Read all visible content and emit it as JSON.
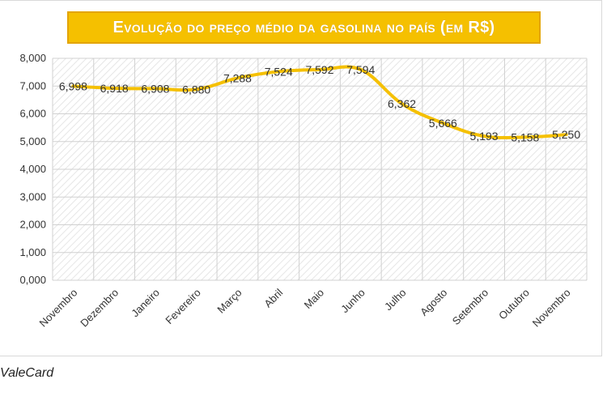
{
  "chart_data": {
    "type": "line",
    "title": "Evolução do preço médio da gasolina no país (em R$)",
    "categories": [
      "Novembro",
      "Dezembro",
      "Janeiro",
      "Fevereiro",
      "Março",
      "Abril",
      "Maio",
      "Junho",
      "Julho",
      "Agosto",
      "Setembro",
      "Outubro",
      "Novembro"
    ],
    "values": [
      6.998,
      6.918,
      6.908,
      6.88,
      7.288,
      7.524,
      7.592,
      7.594,
      6.362,
      5.666,
      5.193,
      5.158,
      5.25
    ],
    "value_labels": [
      "6,998",
      "6,918",
      "6,908",
      "6,880",
      "7,288",
      "7,524",
      "7,592",
      "7,594",
      "6,362",
      "5,666",
      "5,193",
      "5,158",
      "5,250"
    ],
    "y_ticks": [
      0,
      1,
      2,
      3,
      4,
      5,
      6,
      7,
      8
    ],
    "y_tick_labels": [
      "0,000",
      "1,000",
      "2,000",
      "3,000",
      "4,000",
      "5,000",
      "6,000",
      "7,000",
      "8,000"
    ],
    "ylim": [
      0,
      8
    ],
    "xlabel": "",
    "ylabel": "",
    "grid": true,
    "legend": "none",
    "line_color": "#f5c000",
    "title_bg": "#f5c000"
  },
  "source": "ValeCard"
}
